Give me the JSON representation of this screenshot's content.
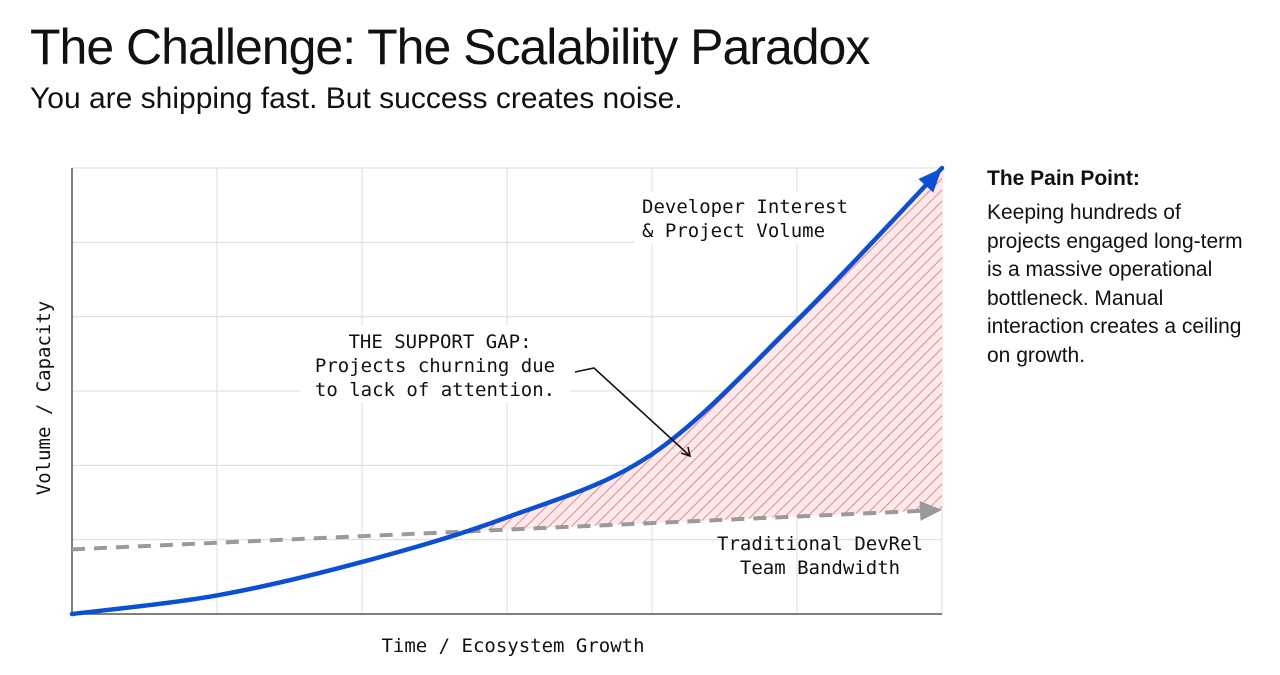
{
  "slide": {
    "title": "The Challenge: The Scalability Paradox",
    "subtitle": "You are shipping fast. But success creates noise."
  },
  "side_panel": {
    "heading": "The Pain Point:",
    "body": "Keeping hundreds of projects engaged long-term is a massive operational bottleneck. Manual interaction creates a ceiling on growth."
  },
  "colors": {
    "growth_line": "#0b4fd6",
    "capacity_line": "#9a9a9a",
    "gap_hatch": "#e8525a",
    "gap_fill": "#fde9ea",
    "grid": "#dcdcdc",
    "axis": "#555555"
  },
  "chart_data": {
    "type": "line",
    "title": "",
    "xlabel": "Time / Ecosystem Growth",
    "ylabel": "Volume / Capacity",
    "x_ticks_shown": false,
    "y_ticks_shown": false,
    "grid": true,
    "xlim": [
      0,
      6
    ],
    "ylim": [
      0,
      6
    ],
    "series": [
      {
        "name": "Developer Interest & Project Volume",
        "style": "solid-arrow",
        "color": "#0b4fd6",
        "x": [
          0,
          1,
          2,
          3,
          4,
          5,
          6
        ],
        "y": [
          0,
          0.25,
          0.7,
          1.3,
          2.15,
          3.95,
          6.0
        ]
      },
      {
        "name": "Traditional DevRel Team Bandwidth",
        "style": "dashed-arrow",
        "color": "#9a9a9a",
        "x": [
          0,
          6
        ],
        "y": [
          0.87,
          1.4
        ]
      }
    ],
    "shaded_region": {
      "label": "THE SUPPORT GAP:",
      "description": "Projects churning due to lack of attention.",
      "between": [
        "Developer Interest & Project Volume",
        "Traditional DevRel Team Bandwidth"
      ],
      "style": "hatched"
    }
  }
}
